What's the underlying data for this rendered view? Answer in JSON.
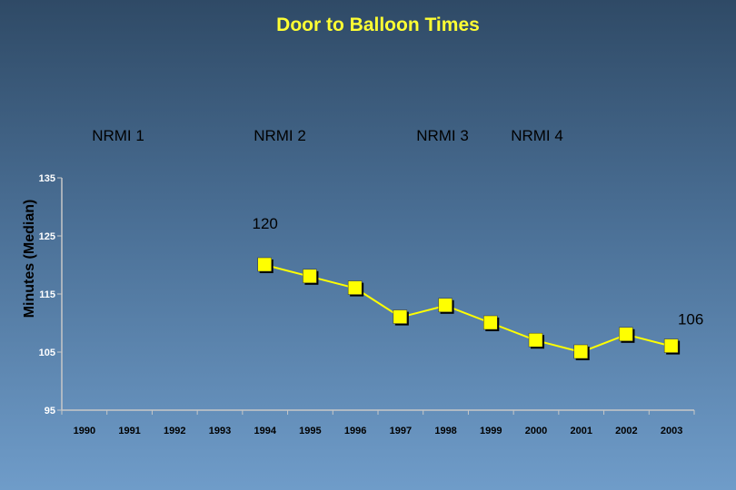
{
  "chart_data": {
    "type": "line",
    "title": "Door to Balloon Times",
    "xlabel": "",
    "ylabel": "Minutes (Median)",
    "ylim": [
      95,
      135
    ],
    "yticks": [
      95,
      105,
      115,
      125,
      135
    ],
    "categories": [
      "1990",
      "1991",
      "1992",
      "1993",
      "1994",
      "1995",
      "1996",
      "1997",
      "1998",
      "1999",
      "2000",
      "2001",
      "2002",
      "2003"
    ],
    "series": [
      {
        "values": [
          null,
          null,
          null,
          null,
          120,
          118,
          116,
          111,
          113,
          110,
          107,
          105,
          108,
          106
        ],
        "color": "#ffff00"
      }
    ],
    "periods": [
      "NRMI 1",
      "NRMI 2",
      "NRMI 3",
      "NRMI 4"
    ],
    "data_labels": [
      {
        "category": "1994",
        "text": "120"
      },
      {
        "category": "2003",
        "text": "106"
      }
    ],
    "grid": false,
    "legend": "none"
  }
}
